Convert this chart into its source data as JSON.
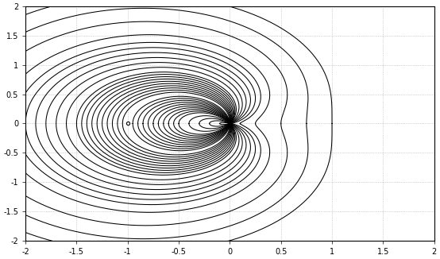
{
  "title": "",
  "xlim": [
    -2,
    2
  ],
  "ylim": [
    -2,
    2
  ],
  "xticks": [
    -2,
    -1.5,
    -1,
    -0.5,
    0,
    0.5,
    1,
    1.5,
    2
  ],
  "yticks": [
    -2,
    -1.5,
    -1,
    -0.5,
    0,
    0.5,
    1,
    1.5,
    2
  ],
  "C_values": [
    0.05,
    0.1,
    0.15,
    0.2,
    0.25,
    0.3,
    0.35,
    0.4,
    0.45,
    0.5,
    0.6,
    0.7,
    0.8,
    0.9,
    1.0,
    1.1,
    1.25,
    1.5,
    1.75,
    2.0
  ],
  "line_color": "#000000",
  "bg_color": "#ffffff",
  "grid_color": "#888888",
  "linewidth": 0.75,
  "figsize": [
    5.54,
    3.26
  ],
  "dpi": 100,
  "marker_x": -1.0,
  "marker_y": 0.0,
  "marker_size": 3
}
